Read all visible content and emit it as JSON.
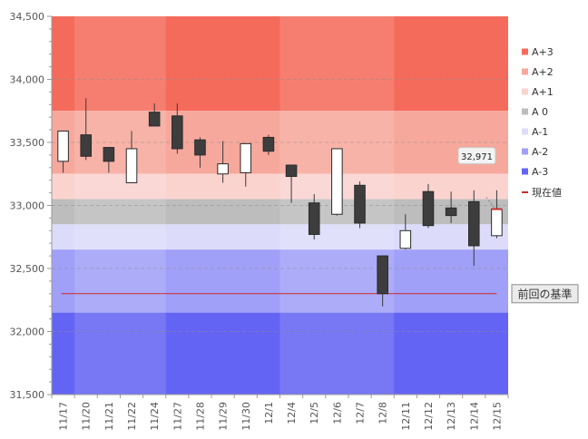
{
  "chart_data": {
    "type": "candlestick",
    "y_axis": {
      "min": 31500,
      "max": 34500,
      "ticks": [
        31500,
        32000,
        32500,
        33000,
        33500,
        34000,
        34500
      ],
      "tick_labels": [
        "31,500",
        "32,000",
        "32,500",
        "33,000",
        "33,500",
        "34,000",
        "34,500"
      ],
      "grid": "dashed"
    },
    "categories": [
      "11/17",
      "11/20",
      "11/21",
      "11/22",
      "11/24",
      "11/27",
      "11/28",
      "11/29",
      "11/30",
      "12/1",
      "12/4",
      "12/5",
      "12/6",
      "12/7",
      "12/8",
      "12/11",
      "12/12",
      "12/13",
      "12/14",
      "12/15"
    ],
    "candles": [
      {
        "open": 33350,
        "high": 33590,
        "low": 33260,
        "close": 33590
      },
      {
        "open": 33560,
        "high": 33850,
        "low": 33360,
        "close": 33390
      },
      {
        "open": 33460,
        "high": 33460,
        "low": 33260,
        "close": 33350
      },
      {
        "open": 33180,
        "high": 33590,
        "low": 33180,
        "close": 33450
      },
      {
        "open": 33740,
        "high": 33810,
        "low": 33630,
        "close": 33630
      },
      {
        "open": 33710,
        "high": 33810,
        "low": 33410,
        "close": 33450
      },
      {
        "open": 33520,
        "high": 33540,
        "low": 33300,
        "close": 33400
      },
      {
        "open": 33250,
        "high": 33510,
        "low": 33180,
        "close": 33330
      },
      {
        "open": 33260,
        "high": 33490,
        "low": 33150,
        "close": 33490
      },
      {
        "open": 33540,
        "high": 33560,
        "low": 33400,
        "close": 33430
      },
      {
        "open": 33320,
        "high": 33320,
        "low": 33020,
        "close": 33230
      },
      {
        "open": 33020,
        "high": 33090,
        "low": 32730,
        "close": 32770
      },
      {
        "open": 32930,
        "high": 33450,
        "low": 32920,
        "close": 33450
      },
      {
        "open": 33160,
        "high": 33190,
        "low": 32820,
        "close": 32860
      },
      {
        "open": 32600,
        "high": 32600,
        "low": 32200,
        "close": 32300
      },
      {
        "open": 32660,
        "high": 32930,
        "low": 32650,
        "close": 32800
      },
      {
        "open": 33110,
        "high": 33170,
        "low": 32820,
        "close": 32840
      },
      {
        "open": 32980,
        "high": 33110,
        "low": 32860,
        "close": 32920
      },
      {
        "open": 33030,
        "high": 33120,
        "low": 32520,
        "close": 32680
      },
      {
        "open": 32760,
        "high": 33120,
        "low": 32740,
        "close": 32970
      }
    ],
    "bands": [
      {
        "name": "A+3",
        "from": 33750,
        "to": 34500,
        "color": "#f56b5b"
      },
      {
        "name": "A+2",
        "from": 33250,
        "to": 33750,
        "color": "#f7a89c"
      },
      {
        "name": "A+1",
        "from": 33050,
        "to": 33250,
        "color": "#fad3cf"
      },
      {
        "name": "A 0",
        "from": 32850,
        "to": 33050,
        "color": "#bdbdbd"
      },
      {
        "name": "A-1",
        "from": 32650,
        "to": 32850,
        "color": "#dcdcfa"
      },
      {
        "name": "A-2",
        "from": 32150,
        "to": 32650,
        "color": "#a0a0f8"
      },
      {
        "name": "A-3",
        "from": 31500,
        "to": 32150,
        "color": "#6464f4"
      }
    ],
    "week_shade_ranges": [
      [
        1,
        4
      ],
      [
        10,
        14
      ]
    ],
    "previous_reference": {
      "value": 32300,
      "label": "前回の基準",
      "color": "#cc2b2b"
    },
    "current": {
      "value": 32971,
      "label": "32,971",
      "color": "#cc2b2b"
    },
    "legend": {
      "position": "right",
      "items": [
        {
          "label": "A+3",
          "color": "#f56b5b",
          "kind": "box"
        },
        {
          "label": "A+2",
          "color": "#f7a89c",
          "kind": "box"
        },
        {
          "label": "A+1",
          "color": "#fad3cf",
          "kind": "box"
        },
        {
          "label": "A 0",
          "color": "#bdbdbd",
          "kind": "box"
        },
        {
          "label": "A-1",
          "color": "#dcdcfa",
          "kind": "box"
        },
        {
          "label": "A-2",
          "color": "#a0a0f8",
          "kind": "box"
        },
        {
          "label": "A-3",
          "color": "#6464f4",
          "kind": "box"
        },
        {
          "label": "現在値",
          "color": "#cc2b2b",
          "kind": "line"
        }
      ]
    }
  }
}
